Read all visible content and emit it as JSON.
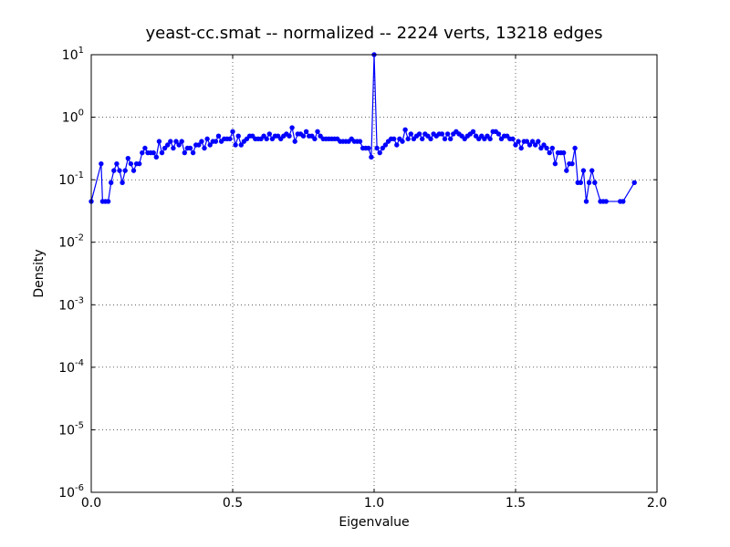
{
  "chart_data": {
    "type": "line",
    "title": "yeast-cc.smat -- normalized -- 2224 verts, 13218 edges",
    "xlabel": "Eigenvalue",
    "ylabel": "Density",
    "log_y": true,
    "grid": true,
    "color": "#0000ff",
    "xlim": [
      0,
      2
    ],
    "ylim": [
      1e-06,
      10
    ],
    "xticks": [
      {
        "value": 0,
        "label": "0.0"
      },
      0.5,
      {
        "value": 1,
        "label": "1.0"
      },
      1.5,
      {
        "value": 2,
        "label": "2.0"
      }
    ],
    "yticks": [
      {
        "value": 1e-06,
        "label": "10",
        "exponent": "-6"
      },
      {
        "value": 1e-05,
        "label": "10",
        "exponent": "-5"
      },
      {
        "value": 0.0001,
        "label": "10",
        "exponent": "-4"
      },
      {
        "value": 0.001,
        "label": "10",
        "exponent": "-3"
      },
      {
        "value": 0.01,
        "label": "10",
        "exponent": "-2"
      },
      {
        "value": 0.1,
        "label": "10",
        "exponent": "-1"
      },
      {
        "value": 1,
        "label": "10",
        "exponent": "0"
      },
      {
        "value": 10,
        "label": "10",
        "exponent": "1"
      }
    ],
    "x": [
      0.0,
      0.035,
      0.04,
      0.05,
      0.06,
      0.07,
      0.08,
      0.09,
      0.1,
      0.11,
      0.12,
      0.13,
      0.14,
      0.15,
      0.16,
      0.17,
      0.18,
      0.19,
      0.2,
      0.21,
      0.22,
      0.23,
      0.24,
      0.25,
      0.26,
      0.27,
      0.28,
      0.29,
      0.3,
      0.31,
      0.32,
      0.33,
      0.34,
      0.35,
      0.36,
      0.37,
      0.38,
      0.39,
      0.4,
      0.41,
      0.42,
      0.43,
      0.44,
      0.45,
      0.46,
      0.47,
      0.48,
      0.49,
      0.5,
      0.51,
      0.52,
      0.53,
      0.54,
      0.55,
      0.56,
      0.57,
      0.58,
      0.59,
      0.6,
      0.61,
      0.62,
      0.63,
      0.64,
      0.65,
      0.66,
      0.67,
      0.68,
      0.69,
      0.7,
      0.71,
      0.72,
      0.73,
      0.74,
      0.75,
      0.76,
      0.77,
      0.78,
      0.79,
      0.8,
      0.81,
      0.82,
      0.83,
      0.84,
      0.85,
      0.86,
      0.87,
      0.88,
      0.89,
      0.9,
      0.91,
      0.92,
      0.93,
      0.94,
      0.95,
      0.96,
      0.97,
      0.98,
      0.99,
      1.0,
      1.01,
      1.02,
      1.03,
      1.04,
      1.05,
      1.06,
      1.07,
      1.08,
      1.09,
      1.1,
      1.11,
      1.12,
      1.13,
      1.14,
      1.15,
      1.16,
      1.17,
      1.18,
      1.19,
      1.2,
      1.21,
      1.22,
      1.23,
      1.24,
      1.25,
      1.26,
      1.27,
      1.28,
      1.29,
      1.3,
      1.31,
      1.32,
      1.33,
      1.34,
      1.35,
      1.36,
      1.37,
      1.38,
      1.39,
      1.4,
      1.41,
      1.42,
      1.43,
      1.44,
      1.45,
      1.46,
      1.47,
      1.48,
      1.49,
      1.5,
      1.51,
      1.52,
      1.53,
      1.54,
      1.55,
      1.56,
      1.57,
      1.58,
      1.59,
      1.6,
      1.61,
      1.62,
      1.63,
      1.64,
      1.65,
      1.66,
      1.67,
      1.68,
      1.69,
      1.7,
      1.71,
      1.72,
      1.73,
      1.74,
      1.75,
      1.76,
      1.77,
      1.78,
      1.8,
      1.81,
      1.82,
      1.87,
      1.88,
      1.92
    ],
    "values": [
      0.045,
      0.18,
      0.045,
      0.045,
      0.045,
      0.09,
      0.14,
      0.18,
      0.14,
      0.09,
      0.14,
      0.22,
      0.18,
      0.14,
      0.18,
      0.18,
      0.27,
      0.32,
      0.27,
      0.27,
      0.27,
      0.23,
      0.41,
      0.27,
      0.32,
      0.36,
      0.41,
      0.32,
      0.41,
      0.36,
      0.41,
      0.27,
      0.32,
      0.32,
      0.27,
      0.36,
      0.36,
      0.41,
      0.32,
      0.45,
      0.36,
      0.41,
      0.41,
      0.5,
      0.41,
      0.45,
      0.45,
      0.45,
      0.59,
      0.36,
      0.5,
      0.36,
      0.41,
      0.45,
      0.5,
      0.5,
      0.45,
      0.45,
      0.45,
      0.5,
      0.45,
      0.54,
      0.45,
      0.5,
      0.5,
      0.45,
      0.5,
      0.54,
      0.5,
      0.68,
      0.41,
      0.54,
      0.54,
      0.5,
      0.59,
      0.5,
      0.5,
      0.45,
      0.59,
      0.5,
      0.45,
      0.45,
      0.45,
      0.45,
      0.45,
      0.45,
      0.41,
      0.41,
      0.41,
      0.41,
      0.45,
      0.41,
      0.41,
      0.41,
      0.32,
      0.32,
      0.32,
      0.23,
      10,
      0.32,
      0.27,
      0.32,
      0.36,
      0.41,
      0.45,
      0.45,
      0.36,
      0.45,
      0.41,
      0.63,
      0.45,
      0.54,
      0.45,
      0.5,
      0.54,
      0.45,
      0.54,
      0.5,
      0.45,
      0.54,
      0.5,
      0.54,
      0.54,
      0.45,
      0.54,
      0.45,
      0.54,
      0.59,
      0.54,
      0.5,
      0.45,
      0.5,
      0.54,
      0.59,
      0.5,
      0.45,
      0.5,
      0.45,
      0.5,
      0.45,
      0.59,
      0.59,
      0.54,
      0.45,
      0.5,
      0.5,
      0.45,
      0.45,
      0.36,
      0.41,
      0.32,
      0.41,
      0.41,
      0.36,
      0.41,
      0.36,
      0.41,
      0.32,
      0.36,
      0.32,
      0.27,
      0.32,
      0.18,
      0.27,
      0.27,
      0.27,
      0.14,
      0.18,
      0.18,
      0.32,
      0.09,
      0.09,
      0.14,
      0.045,
      0.09,
      0.14,
      0.09,
      0.045,
      0.045,
      0.045,
      0.045,
      0.045,
      0.09
    ]
  }
}
